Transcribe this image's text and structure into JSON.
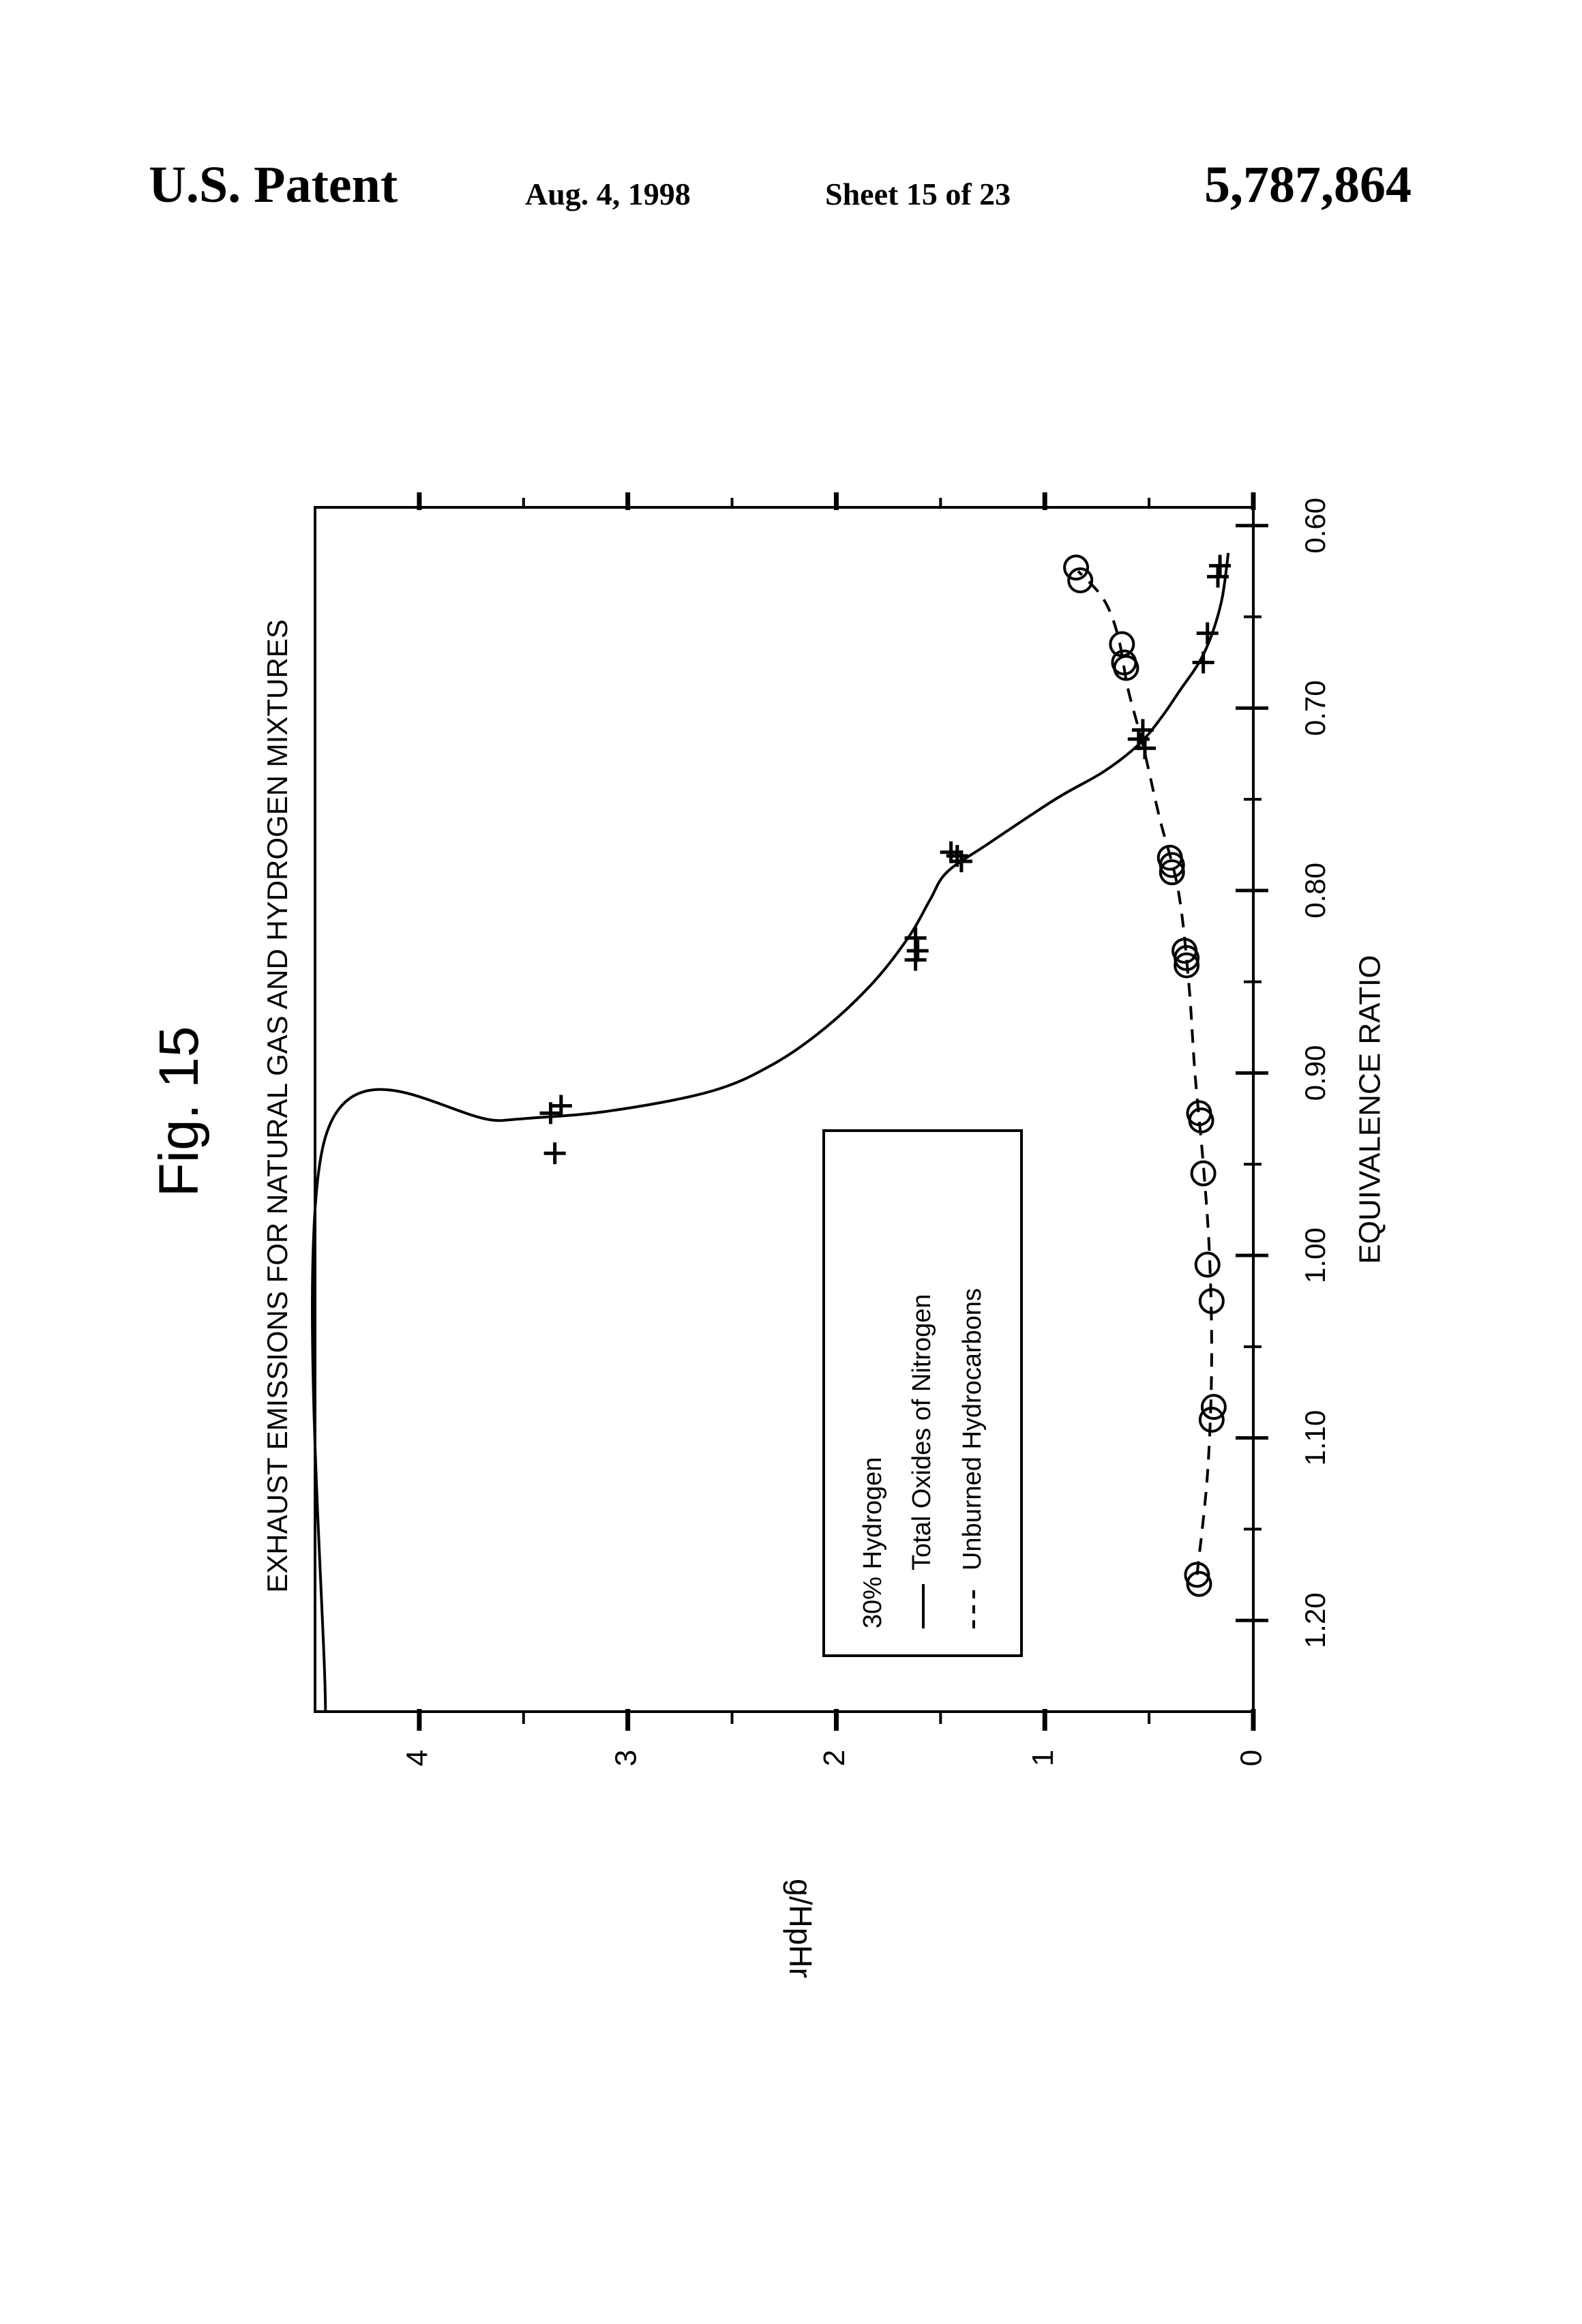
{
  "header": {
    "left": "U.S. Patent",
    "date": "Aug. 4, 1998",
    "sheet": "Sheet 15 of 23",
    "patent_number": "5,787,864"
  },
  "figure_label": "Fig. 15",
  "colors": {
    "ink": "#000000",
    "paper": "#ffffff"
  },
  "chart_data": {
    "type": "scatter",
    "orientation": "rotated 90 degrees counter-clockwise on the page",
    "title": "EXHAUST EMISSIONS FOR NATURAL GAS AND HYDROGEN MIXTURES",
    "xlabel": "EQUIVALENCE RATIO",
    "ylabel": "g/HpHr",
    "xlim": [
      0.59,
      1.25
    ],
    "ylim": [
      0,
      4.5
    ],
    "x_ticks": [
      "0.60",
      "0.70",
      "0.80",
      "0.90",
      "1.00",
      "1.10",
      "1.20"
    ],
    "x_tick_values": [
      0.6,
      0.7,
      0.8,
      0.9,
      1.0,
      1.1,
      1.2
    ],
    "y_ticks": [
      "0",
      "1",
      "2",
      "3",
      "4"
    ],
    "y_tick_values": [
      0,
      1,
      2,
      3,
      4
    ],
    "grid": false,
    "legend": {
      "position": "inside, lower-middle",
      "title": "30% Hydrogen",
      "entries": [
        "Total Oxides of Nitrogen",
        "Unburned Hydrocarbons"
      ]
    },
    "series": [
      {
        "name": "Total Oxides of Nitrogen",
        "marker": "+",
        "line": "solid",
        "points": [
          [
            0.944,
            3.35
          ],
          [
            0.922,
            3.37
          ],
          [
            0.918,
            3.32
          ],
          [
            0.826,
            1.62
          ],
          [
            0.833,
            1.61
          ],
          [
            0.838,
            1.62
          ],
          [
            0.779,
            1.45
          ],
          [
            0.781,
            1.42
          ],
          [
            0.784,
            1.4
          ],
          [
            0.712,
            0.53
          ],
          [
            0.717,
            0.55
          ],
          [
            0.722,
            0.52
          ],
          [
            0.659,
            0.22
          ],
          [
            0.675,
            0.24
          ],
          [
            0.628,
            0.17
          ],
          [
            0.622,
            0.16
          ]
        ],
        "curve": [
          [
            1.25,
            4.45
          ],
          [
            0.935,
            4.45
          ],
          [
            0.926,
            3.6
          ],
          [
            0.921,
            3.1
          ],
          [
            0.91,
            2.6
          ],
          [
            0.895,
            2.3
          ],
          [
            0.875,
            2.05
          ],
          [
            0.85,
            1.82
          ],
          [
            0.825,
            1.65
          ],
          [
            0.805,
            1.55
          ],
          [
            0.79,
            1.47
          ],
          [
            0.775,
            1.28
          ],
          [
            0.75,
            0.95
          ],
          [
            0.735,
            0.72
          ],
          [
            0.72,
            0.55
          ],
          [
            0.705,
            0.44
          ],
          [
            0.69,
            0.35
          ],
          [
            0.675,
            0.26
          ],
          [
            0.66,
            0.2
          ],
          [
            0.64,
            0.15
          ],
          [
            0.615,
            0.12
          ]
        ]
      },
      {
        "name": "Unburned Hydrocarbons",
        "marker": "o",
        "line": "dashed",
        "points": [
          [
            0.623,
            0.85
          ],
          [
            0.63,
            0.83
          ],
          [
            0.665,
            0.63
          ],
          [
            0.675,
            0.62
          ],
          [
            0.678,
            0.61
          ],
          [
            0.782,
            0.4
          ],
          [
            0.786,
            0.39
          ],
          [
            0.79,
            0.39
          ],
          [
            0.833,
            0.33
          ],
          [
            0.837,
            0.32
          ],
          [
            0.841,
            0.32
          ],
          [
            0.922,
            0.26
          ],
          [
            0.926,
            0.25
          ],
          [
            0.955,
            0.24
          ],
          [
            1.005,
            0.22
          ],
          [
            1.025,
            0.2
          ],
          [
            1.083,
            0.19
          ],
          [
            1.09,
            0.2
          ],
          [
            1.175,
            0.27
          ],
          [
            1.18,
            0.26
          ]
        ],
        "curve": [
          [
            1.175,
            0.27
          ],
          [
            1.12,
            0.22
          ],
          [
            1.06,
            0.2
          ],
          [
            1.0,
            0.21
          ],
          [
            0.95,
            0.24
          ],
          [
            0.9,
            0.28
          ],
          [
            0.85,
            0.31
          ],
          [
            0.8,
            0.36
          ],
          [
            0.76,
            0.45
          ],
          [
            0.72,
            0.53
          ],
          [
            0.69,
            0.6
          ],
          [
            0.66,
            0.65
          ],
          [
            0.64,
            0.72
          ],
          [
            0.625,
            0.84
          ]
        ]
      }
    ]
  }
}
